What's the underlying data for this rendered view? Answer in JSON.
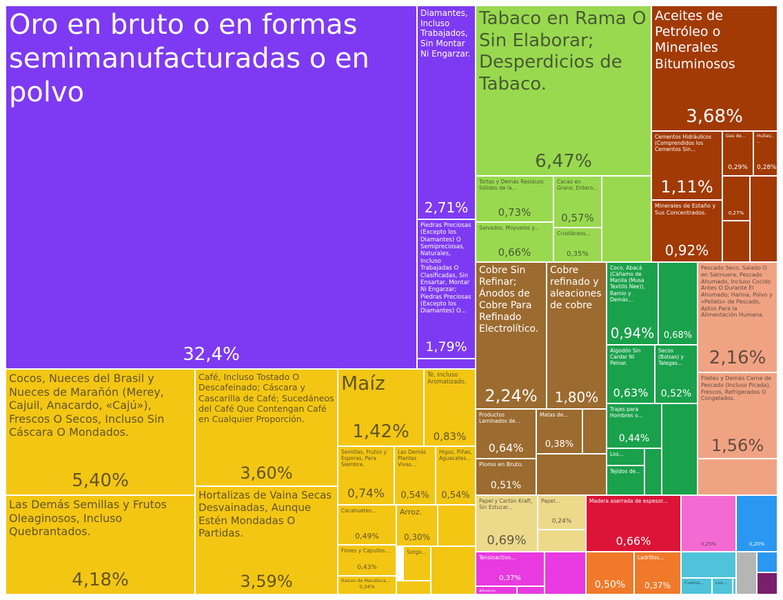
{
  "chart_data": {
    "type": "treemap",
    "categories": [
      "Oro en bruto o en formas semimanufacturadas o en polvo",
      "Diamantes, Incluso Trabajados, Sin Montar Ni Engarzar.",
      "Piedras Preciosas (Excepto los Diamantes) O Semipreciosas, Naturales, Incluso Trabajadas O Clasificadas, Sin Ensartar, Montar Ni Engarzar; Piedras Preciosas (Excepto los Diamantes) O...",
      "Cocos, Nueces del Brasil y Nueces de Marañón (Merey, Cajuil, Anacardo, «Cajú»), Frescos O Secos, Incluso Sin Cáscara O Mondados.",
      "Las Demás Semillas y Frutos Oleaginosos, Incluso Quebrantados.",
      "Café, Incluso Tostado O Descafeinado; Cáscara y Cascarilla de Café; Sucedáneos del Café Que Contengan Café en Cualquier Proporción.",
      "Hortalizas de Vaina Secas Desvainadas, Aunque Estén Mondadas O Partidas.",
      "Maíz",
      "Té, Incluso Aromatizado.",
      "Semillas, Frutos y Esporas, Para Siembra.",
      "Las Demás Plantas Vivas...",
      "Higos, Piñas, Aguacates...",
      "Cacahuetes...",
      "Arroz.",
      "Flores y Capullos...",
      "Sorgo...",
      "Raíces de Mandioca...",
      "Tabaco en Rama O Sin Elaborar; Desperdicios de Tabaco.",
      "Tortas y Demás Residuos Sólidos de la...",
      "Cacao en Grano, Entero...",
      "Salvados, Moyuelos y...",
      "Crustáceos...",
      "Aceites de Petróleo o Minerales Bituminosos",
      "Cementos Hidráulicos (Comprendidos los Cementos Sin...",
      "Gas de...",
      "Hullas;...",
      "Minerales de Estaño y Sus Concentrados.",
      null,
      "Cobre Sin Refinar; Ánodos de Cobre Para Refinado Electrolítico.",
      "Cobre refinado y aleaciones de cobre",
      "Productos Laminados de...",
      "Matas de...",
      "Plomo en Bruto.",
      "Coco, Abacá (Cáñamo de Manila (Musa Textilis Nee)), Ramio y Demás...",
      null,
      "Algodón Sin Cardar Ni Peinar.",
      "Secos (Bolsas) y Talegas...",
      "Trajes para Hombres o...",
      "Los...",
      "Tejidos de...",
      "Pescado Seco, Salado O en Salmuera; Pescado Ahumado, Incluso Cocido Antes O Durante El Ahumado; Harina, Polvo y «Pellets» de Pescado, Aptos Para la Alimentación Humana.",
      "Filetes y Demás Carne de Pescado (Incluso Picada), Frescos, Refrigerados O Congelados.",
      "Papel y Cartón Kraft, Sin Estucar...",
      "Papel...",
      "Madera aserrada de espesor...",
      "Tensioactivo...",
      "Abonos...",
      null,
      "Ladrillos...",
      null,
      null,
      "Cueros...",
      "Los..."
    ],
    "values": [
      32.4,
      2.71,
      1.79,
      5.4,
      4.18,
      3.6,
      3.59,
      1.42,
      0.83,
      0.74,
      0.54,
      0.54,
      0.49,
      0.3,
      0.43,
      null,
      0.34,
      6.47,
      0.73,
      0.57,
      0.66,
      0.35,
      3.68,
      1.11,
      0.29,
      0.28,
      0.92,
      0.27,
      2.24,
      1.8,
      0.64,
      0.38,
      0.51,
      0.94,
      0.68,
      0.63,
      0.52,
      0.44,
      null,
      null,
      2.16,
      1.56,
      0.69,
      0.24,
      0.66,
      0.37,
      null,
      0.5,
      0.37,
      0.25,
      0.2,
      null,
      null
    ],
    "value_labels": [
      "32,4%",
      "2,71%",
      "1,79%",
      "5,40%",
      "4,18%",
      "3,60%",
      "3,59%",
      "1,42%",
      "0,83%",
      "0,74%",
      "0,54%",
      "0,54%",
      "0,49%",
      "0,30%",
      "0,43%",
      null,
      "0,34%",
      "6,47%",
      "0,73%",
      "0,57%",
      "0,66%",
      "0,35%",
      "3,68%",
      "1,11%",
      "0,29%",
      "0,28%",
      "0,92%",
      "0,27%",
      "2,24%",
      "1,80%",
      "0,64%",
      "0,38%",
      "0,51%",
      "0,94%",
      "0,68%",
      "0,63%",
      "0,52%",
      "0,44%",
      null,
      null,
      "2,16%",
      "1,56%",
      "0,69%",
      "0,24%",
      "0,66%",
      "0,37%",
      null,
      "0,50%",
      "0,37%",
      "0,25%",
      "0,20%",
      null,
      null
    ],
    "colors": [
      "#7e3af2",
      "#7e3af2",
      "#7e3af2",
      "#f3c614",
      "#f3c614",
      "#f3c614",
      "#f3c614",
      "#f3c614",
      "#f3c614",
      "#f3c614",
      "#f3c614",
      "#f3c614",
      "#f3c614",
      "#f3c614",
      "#f3c614",
      "#f3c614",
      "#f3c614",
      "#99d94f",
      "#99d94f",
      "#99d94f",
      "#99d94f",
      "#99d94f",
      "#a23a06",
      "#a23a06",
      "#a23a06",
      "#a23a06",
      "#a23a06",
      "#a23a06",
      "#9c6b30",
      "#9c6b30",
      "#9c6b30",
      "#9c6b30",
      "#9c6b30",
      "#1aa14c",
      "#1aa14c",
      "#1aa14c",
      "#1aa14c",
      "#1aa14c",
      "#1aa14c",
      "#1aa14c",
      "#f0a383",
      "#f0a383",
      "#ecd98a",
      "#ecd98a",
      "#dc1438",
      "#e83ae0",
      "#e83ae0",
      "#f07a2a",
      "#f07a2a",
      "#f36bd2",
      "#2a98f0",
      "#4fc3d9",
      "#4fc3d9"
    ]
  }
}
